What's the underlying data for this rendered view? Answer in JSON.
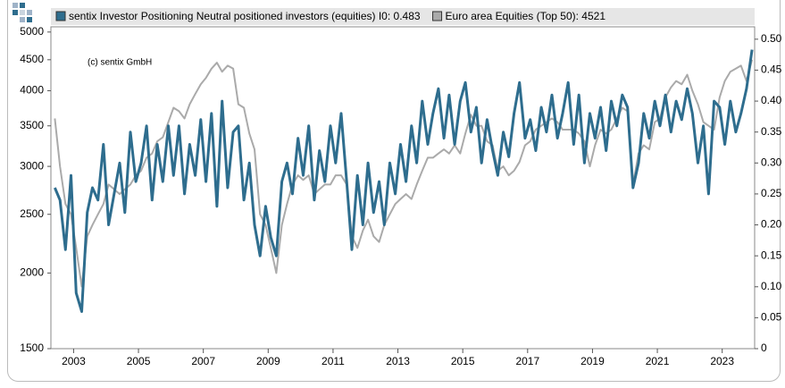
{
  "chart_data": {
    "type": "line",
    "annotation": "(c) sentix GmbH",
    "x": [
      2002.42,
      2002.58,
      2002.75,
      2002.92,
      2003.08,
      2003.25,
      2003.42,
      2003.58,
      2003.75,
      2003.92,
      2004.08,
      2004.25,
      2004.42,
      2004.58,
      2004.75,
      2004.92,
      2005.08,
      2005.25,
      2005.42,
      2005.58,
      2005.75,
      2005.92,
      2006.08,
      2006.25,
      2006.42,
      2006.58,
      2006.75,
      2006.92,
      2007.08,
      2007.25,
      2007.42,
      2007.58,
      2007.75,
      2007.92,
      2008.08,
      2008.25,
      2008.42,
      2008.58,
      2008.75,
      2008.92,
      2009.08,
      2009.25,
      2009.42,
      2009.58,
      2009.75,
      2009.92,
      2010.08,
      2010.25,
      2010.42,
      2010.58,
      2010.75,
      2010.92,
      2011.08,
      2011.25,
      2011.42,
      2011.58,
      2011.75,
      2011.92,
      2012.08,
      2012.25,
      2012.42,
      2012.58,
      2012.75,
      2012.92,
      2013.08,
      2013.25,
      2013.42,
      2013.58,
      2013.75,
      2013.92,
      2014.08,
      2014.25,
      2014.42,
      2014.58,
      2014.75,
      2014.92,
      2015.08,
      2015.25,
      2015.42,
      2015.58,
      2015.75,
      2015.92,
      2016.08,
      2016.25,
      2016.42,
      2016.58,
      2016.75,
      2016.92,
      2017.08,
      2017.25,
      2017.42,
      2017.58,
      2017.75,
      2017.92,
      2018.08,
      2018.25,
      2018.42,
      2018.58,
      2018.75,
      2018.92,
      2019.08,
      2019.25,
      2019.42,
      2019.58,
      2019.75,
      2019.92,
      2020.08,
      2020.25,
      2020.42,
      2020.58,
      2020.75,
      2020.92,
      2021.08,
      2021.25,
      2021.42,
      2021.58,
      2021.75,
      2021.92,
      2022.08,
      2022.25,
      2022.42,
      2022.58,
      2022.75,
      2022.92,
      2023.08,
      2023.25,
      2023.42,
      2023.58,
      2023.75,
      2023.92
    ],
    "series": [
      {
        "name": "Euro area Equities (Top 50): 4521",
        "color": "#aaaaaa",
        "axis": "y",
        "values": [
          3600,
          3000,
          2600,
          2500,
          2200,
          1900,
          2300,
          2400,
          2500,
          2600,
          2800,
          2750,
          2700,
          2750,
          2800,
          2900,
          2950,
          3100,
          3150,
          3300,
          3350,
          3550,
          3750,
          3700,
          3600,
          3800,
          3950,
          4100,
          4200,
          4350,
          4450,
          4300,
          4400,
          4350,
          3800,
          3750,
          3400,
          3200,
          2500,
          2400,
          2200,
          2000,
          2400,
          2600,
          2800,
          2900,
          2850,
          2900,
          2700,
          2750,
          2800,
          2800,
          2900,
          2900,
          2800,
          2300,
          2200,
          2350,
          2450,
          2300,
          2250,
          2400,
          2500,
          2600,
          2650,
          2700,
          2650,
          2800,
          2950,
          3100,
          3100,
          3150,
          3200,
          3150,
          3250,
          3150,
          3400,
          3650,
          3500,
          3500,
          3300,
          3250,
          2950,
          3000,
          2900,
          2950,
          3050,
          3250,
          3300,
          3450,
          3500,
          3550,
          3600,
          3550,
          3450,
          3450,
          3450,
          3400,
          3300,
          3000,
          3250,
          3450,
          3400,
          3450,
          3600,
          3750,
          3700,
          2800,
          3150,
          3250,
          3200,
          3550,
          3600,
          3900,
          4050,
          4150,
          4100,
          4250,
          4000,
          3800,
          3550,
          3500,
          3450,
          3900,
          4150,
          4300,
          4350,
          4400,
          4150,
          4500
        ]
      },
      {
        "name": "sentix Investor Positioning Neutral positioned investors (equities) I0: 0.483",
        "color": "#2e6d8e",
        "axis": "y2",
        "values": [
          0.26,
          0.24,
          0.16,
          0.28,
          0.09,
          0.06,
          0.22,
          0.26,
          0.24,
          0.33,
          0.2,
          0.25,
          0.3,
          0.22,
          0.35,
          0.27,
          0.3,
          0.36,
          0.24,
          0.33,
          0.27,
          0.36,
          0.28,
          0.36,
          0.25,
          0.33,
          0.28,
          0.37,
          0.27,
          0.38,
          0.23,
          0.4,
          0.26,
          0.35,
          0.36,
          0.24,
          0.3,
          0.2,
          0.15,
          0.23,
          0.18,
          0.15,
          0.27,
          0.3,
          0.25,
          0.34,
          0.28,
          0.36,
          0.24,
          0.32,
          0.27,
          0.36,
          0.3,
          0.38,
          0.27,
          0.16,
          0.28,
          0.2,
          0.3,
          0.22,
          0.27,
          0.2,
          0.3,
          0.25,
          0.33,
          0.27,
          0.36,
          0.3,
          0.4,
          0.33,
          0.38,
          0.42,
          0.34,
          0.41,
          0.33,
          0.4,
          0.43,
          0.35,
          0.39,
          0.3,
          0.37,
          0.32,
          0.28,
          0.35,
          0.31,
          0.38,
          0.43,
          0.34,
          0.37,
          0.32,
          0.39,
          0.35,
          0.41,
          0.34,
          0.38,
          0.43,
          0.33,
          0.41,
          0.3,
          0.38,
          0.34,
          0.39,
          0.32,
          0.4,
          0.36,
          0.41,
          0.39,
          0.26,
          0.3,
          0.38,
          0.34,
          0.4,
          0.36,
          0.41,
          0.35,
          0.4,
          0.37,
          0.42,
          0.38,
          0.3,
          0.36,
          0.25,
          0.4,
          0.39,
          0.33,
          0.4,
          0.35,
          0.38,
          0.42,
          0.483
        ]
      }
    ],
    "xlim": [
      2002.3,
      2024.0
    ],
    "xticks": [
      2003,
      2005,
      2007,
      2009,
      2011,
      2013,
      2015,
      2017,
      2019,
      2021,
      2023
    ],
    "ylim": [
      1500,
      5100
    ],
    "log_y": true,
    "yticks": [
      1500,
      2000,
      2500,
      3000,
      3500,
      4000,
      4500,
      5000
    ],
    "y2lim": [
      0,
      0.52
    ],
    "y2ticks": [
      0,
      0.05,
      {
        "value": 0.1,
        "label": "0.10"
      },
      0.15,
      {
        "value": 0.2,
        "label": "0.20"
      },
      0.25,
      {
        "value": 0.3,
        "label": "0.30"
      },
      0.35,
      {
        "value": 0.4,
        "label": "0.40"
      },
      0.45,
      {
        "value": 0.5,
        "label": "0.50"
      }
    ],
    "legend_order": [
      1,
      0
    ]
  }
}
